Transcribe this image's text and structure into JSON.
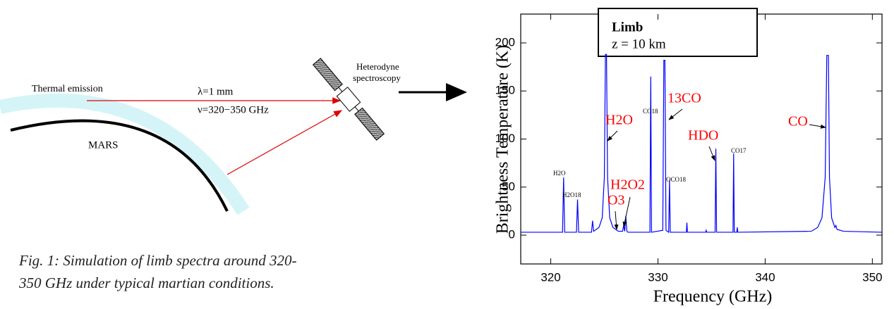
{
  "diagram": {
    "thermal": "Thermal emission",
    "lambda": "λ=1 mm",
    "nu": "ν=320−350 GHz",
    "planet": "MARS",
    "instrument_1": "Heterodyne",
    "instrument_2": "spectroscopy"
  },
  "caption": {
    "line_1": "Fig. 1: Simulation of limb spectra around 320-",
    "line_2": "350 GHz under typical martian conditions."
  },
  "chart_data": {
    "type": "line",
    "xlabel": "Frequency (GHz)",
    "ylabel": "Brightness Temperature (K)",
    "color": "#0000ff",
    "legend_box": {
      "line_1": "Limb",
      "line_2": "z = 10 km"
    },
    "xlim": [
      317.2,
      350.9
    ],
    "ylim": [
      -30,
      230
    ],
    "xticks": [
      320,
      330,
      340,
      350
    ],
    "yticks": [
      0,
      50,
      100,
      150,
      200
    ],
    "x": [
      317.2,
      321.1,
      321.2,
      321.3,
      322.4,
      322.5,
      322.6,
      323.8,
      323.9,
      324.0,
      324.5,
      324.8,
      325.0,
      325.1,
      325.2,
      325.3,
      325.5,
      325.8,
      326.3,
      326.7,
      326.8,
      326.9,
      327.0,
      327.1,
      327.2,
      329.25,
      329.33,
      329.4,
      330.45,
      330.55,
      330.65,
      330.75,
      331.0,
      331.08,
      331.15,
      332.65,
      332.7,
      332.75,
      334.45,
      334.5,
      334.55,
      335.33,
      335.4,
      335.47,
      337.0,
      337.06,
      337.12,
      337.35,
      337.4,
      337.45,
      344.3,
      344.9,
      345.3,
      345.6,
      345.75,
      345.9,
      346.0,
      346.2,
      346.5,
      346.6,
      346.7,
      347.3,
      350.9
    ],
    "values": [
      3,
      3,
      60,
      3,
      3,
      37,
      3,
      3,
      15,
      4,
      8,
      18,
      60,
      188,
      188,
      60,
      18,
      8,
      4,
      4,
      10,
      4,
      20,
      4,
      3,
      3,
      165,
      3,
      5,
      182,
      182,
      5,
      3,
      57,
      3,
      3,
      13,
      3,
      3,
      5,
      3,
      3,
      90,
      3,
      3,
      85,
      3,
      3,
      8,
      3,
      4,
      8,
      18,
      60,
      187,
      187,
      60,
      18,
      8,
      10,
      6,
      4,
      3
    ],
    "annotations": [
      {
        "text": "H2O",
        "color": "#000000"
      },
      {
        "text": "H2O18",
        "color": "#000000"
      },
      {
        "text": "CO18",
        "color": "#000000"
      },
      {
        "text": "13CO",
        "color": "#ff0000"
      },
      {
        "text": "H2O",
        "color": "#ff0000"
      },
      {
        "text": "H2O2",
        "color": "#ff0000"
      },
      {
        "text": "O3",
        "color": "#ff0000"
      },
      {
        "text": "OCO18",
        "color": "#000000"
      },
      {
        "text": "HDO",
        "color": "#ff0000"
      },
      {
        "text": "CO17",
        "color": "#000000"
      },
      {
        "text": "CO",
        "color": "#ff0000"
      }
    ]
  }
}
